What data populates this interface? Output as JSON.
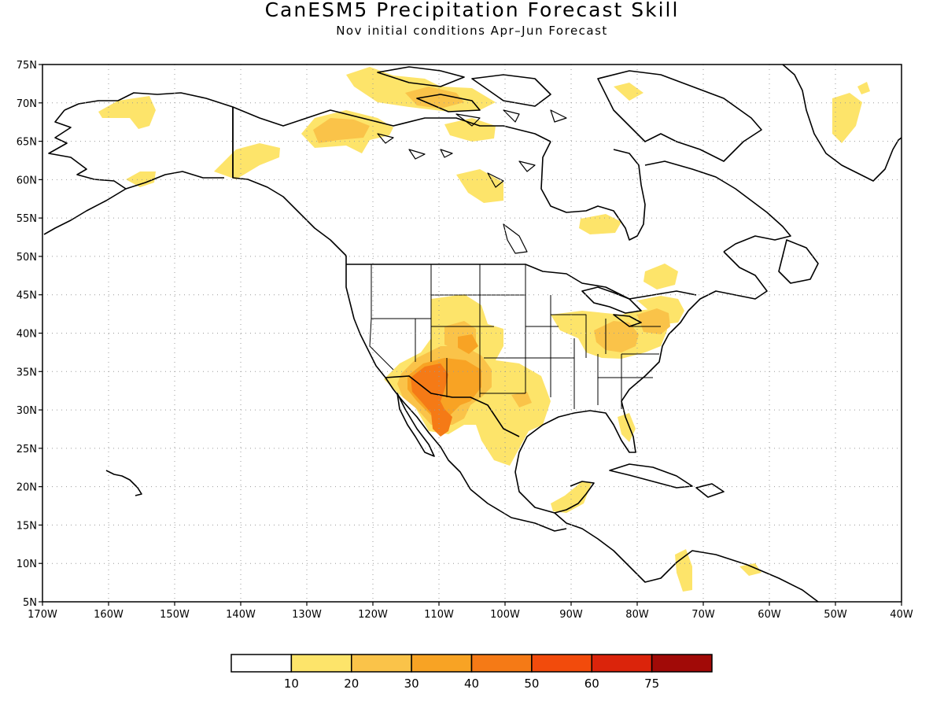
{
  "title": "CanESM5 Precipitation Forecast Skill",
  "subtitle": "Nov initial conditions   Apr–Jun Forecast",
  "map": {
    "lon_range": [
      -170,
      -40
    ],
    "lat_range": [
      5,
      75
    ],
    "lon_ticks": [
      "170W",
      "160W",
      "150W",
      "140W",
      "130W",
      "120W",
      "110W",
      "100W",
      "90W",
      "80W",
      "70W",
      "60W",
      "50W",
      "40W"
    ],
    "lat_ticks": [
      "75N",
      "70N",
      "65N",
      "60N",
      "55N",
      "50N",
      "45N",
      "40N",
      "35N",
      "30N",
      "25N",
      "20N",
      "15N",
      "10N",
      "5N"
    ],
    "grid": "dotted"
  },
  "colorbar": {
    "labels": [
      "10",
      "20",
      "30",
      "40",
      "50",
      "60",
      "75"
    ],
    "colors": [
      "#ffffff",
      "#fde46a",
      "#fac349",
      "#f8a324",
      "#f57a16",
      "#f24b0c",
      "#db240b",
      "#a10a07"
    ]
  }
}
